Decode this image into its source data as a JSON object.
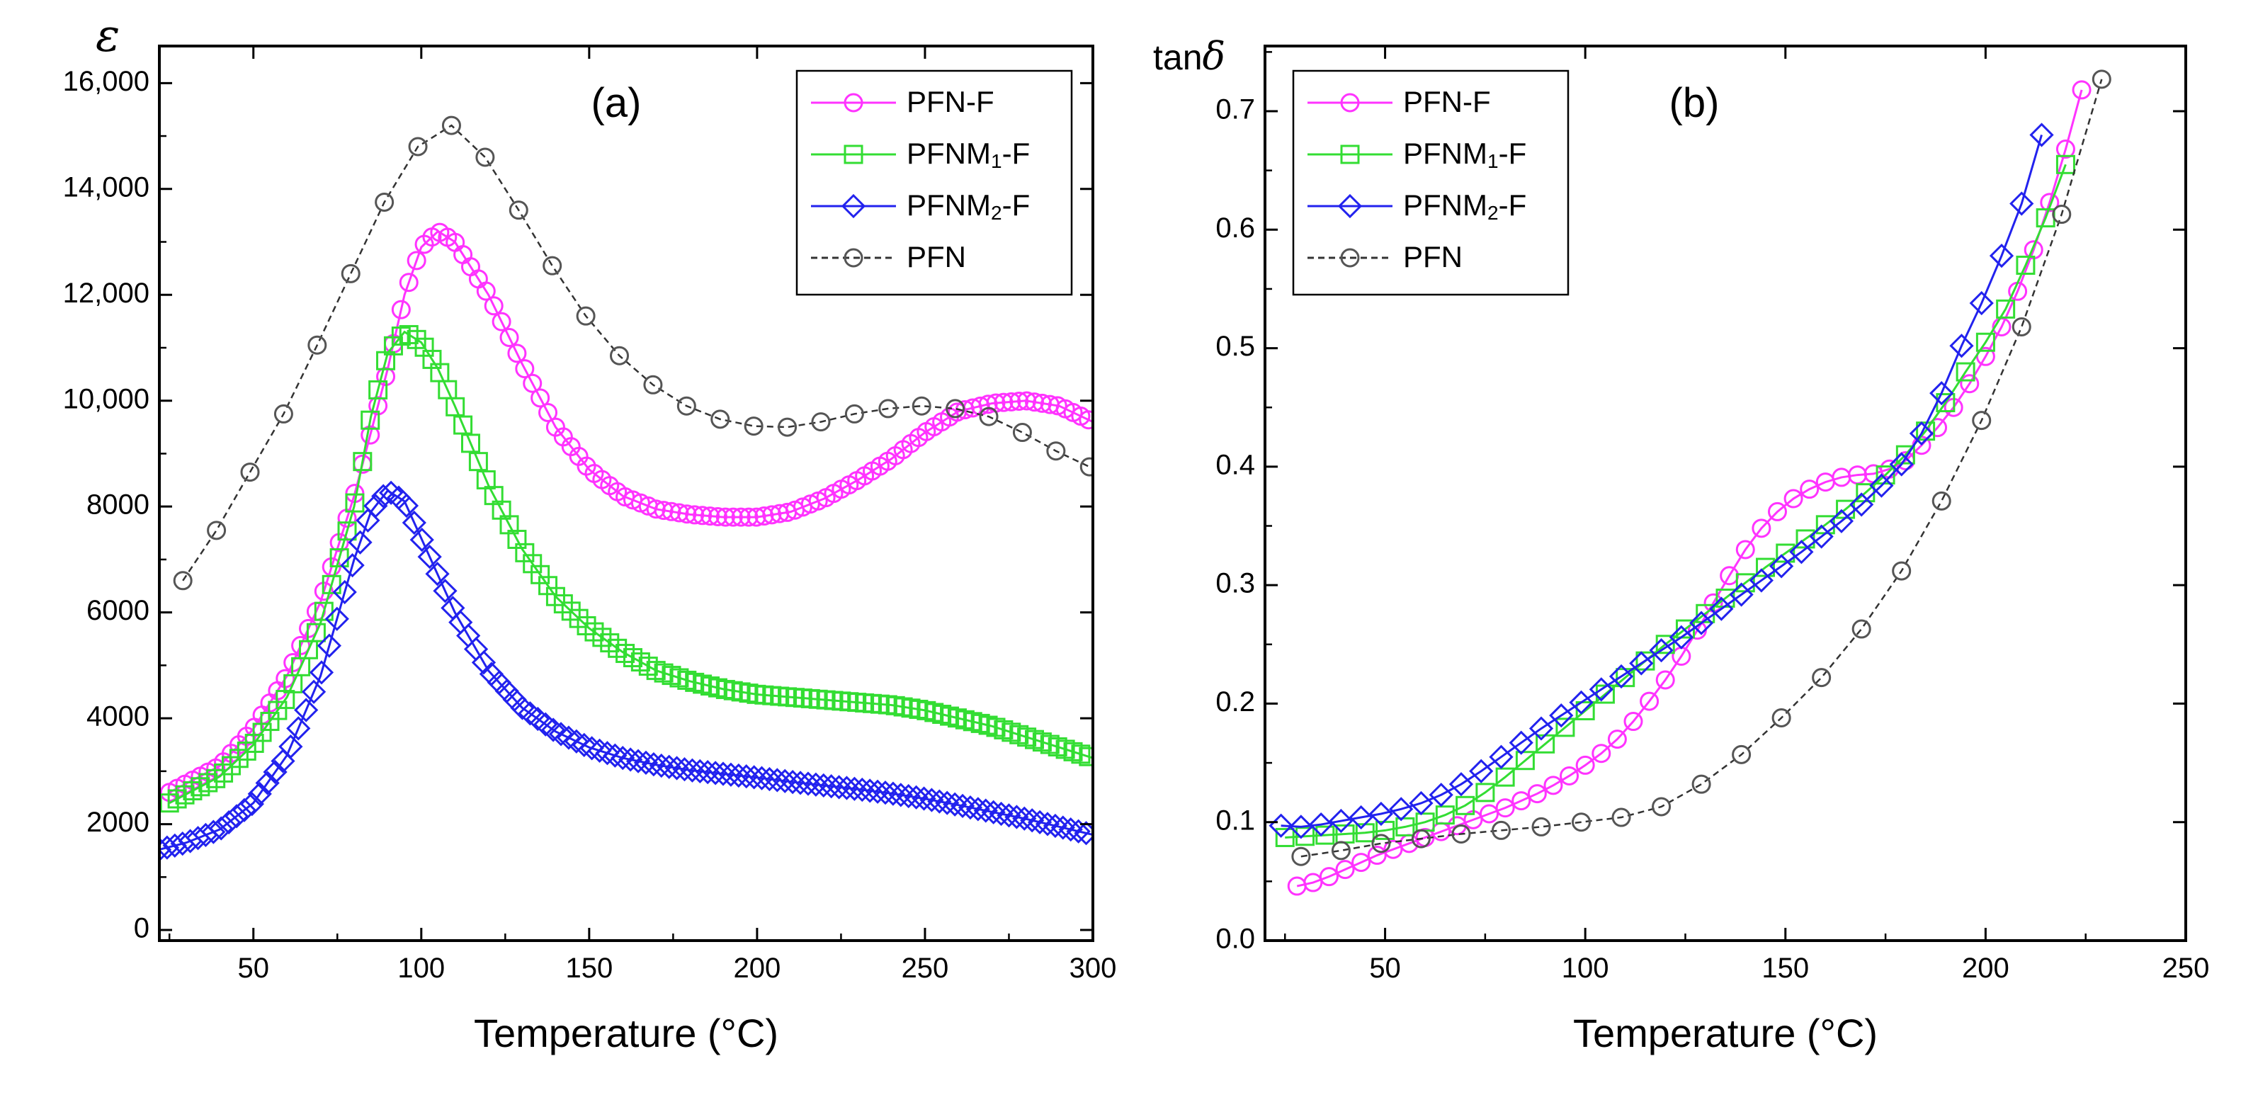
{
  "chart_data": [
    {
      "type": "scatter",
      "panel_label": "(a)",
      "ylabel": "ε",
      "xlabel": "Temperature (°C)",
      "xlim": [
        22,
        300
      ],
      "ylim": [
        -200,
        16700
      ],
      "xticks": [
        50,
        100,
        150,
        200,
        250,
        300
      ],
      "xtick_labels": [
        "50",
        "100",
        "150",
        "200",
        "250",
        "300"
      ],
      "yticks": [
        0,
        2000,
        4000,
        6000,
        8000,
        10000,
        12000,
        14000,
        16000
      ],
      "ytick_labels": [
        "0",
        "2000",
        "4000",
        "6000",
        "8000",
        "10,000",
        "12,000",
        "14,000",
        "16,000"
      ],
      "legend_position": "top-right",
      "legend": [
        "PFN-F",
        "PFNM1-F",
        "PFNM2-F",
        "PFN"
      ],
      "series": [
        {
          "name": "PFN-F",
          "marker": "circle",
          "color": "#ff33ff",
          "line": "solid",
          "dense": true,
          "x": [
            25,
            40,
            50,
            60,
            70,
            80,
            90,
            95,
            100,
            105,
            110,
            120,
            130,
            140,
            150,
            160,
            170,
            180,
            190,
            200,
            210,
            220,
            230,
            240,
            250,
            260,
            270,
            280,
            290,
            300
          ],
          "y": [
            2600,
            3100,
            3800,
            4800,
            6200,
            8200,
            10600,
            12000,
            12900,
            13200,
            13000,
            12000,
            10700,
            9500,
            8700,
            8200,
            7950,
            7850,
            7800,
            7800,
            7900,
            8150,
            8500,
            8900,
            9400,
            9800,
            9950,
            10000,
            9900,
            9600
          ]
        },
        {
          "name": "PFNM1-F",
          "marker": "square",
          "color": "#33dd33",
          "line": "solid",
          "dense": true,
          "x": [
            25,
            40,
            50,
            60,
            70,
            80,
            85,
            90,
            95,
            100,
            105,
            110,
            120,
            130,
            140,
            150,
            160,
            170,
            180,
            190,
            200,
            210,
            220,
            230,
            240,
            250,
            260,
            270,
            280,
            290,
            300
          ],
          "y": [
            2400,
            2900,
            3500,
            4400,
            5800,
            8000,
            9700,
            10900,
            11300,
            11100,
            10600,
            9900,
            8400,
            7200,
            6300,
            5700,
            5250,
            4900,
            4700,
            4550,
            4450,
            4400,
            4350,
            4300,
            4250,
            4150,
            4000,
            3850,
            3650,
            3450,
            3250
          ]
        },
        {
          "name": "PFNM2-F",
          "marker": "diamond",
          "color": "#2222ee",
          "line": "solid",
          "dense": true,
          "x": [
            22,
            30,
            40,
            50,
            60,
            70,
            80,
            85,
            90,
            95,
            100,
            110,
            120,
            130,
            140,
            150,
            160,
            170,
            180,
            190,
            200,
            210,
            220,
            230,
            240,
            250,
            260,
            270,
            280,
            290,
            300
          ],
          "y": [
            1520,
            1650,
            1900,
            2400,
            3300,
            4800,
            7000,
            7900,
            8300,
            8100,
            7400,
            6000,
            4900,
            4200,
            3750,
            3450,
            3250,
            3120,
            3020,
            2950,
            2880,
            2800,
            2730,
            2660,
            2580,
            2480,
            2360,
            2230,
            2100,
            1950,
            1800
          ]
        },
        {
          "name": "PFN",
          "marker": "circle",
          "color": "#555555",
          "line": "dashed",
          "dense": false,
          "x": [
            29,
            39,
            49,
            59,
            69,
            79,
            89,
            99,
            109,
            119,
            129,
            139,
            149,
            159,
            169,
            179,
            189,
            199,
            209,
            219,
            229,
            239,
            249,
            259,
            269,
            279,
            289,
            299
          ],
          "y": [
            6600,
            7550,
            8650,
            9750,
            11050,
            12400,
            13750,
            14800,
            15200,
            14600,
            13600,
            12550,
            11600,
            10850,
            10300,
            9900,
            9650,
            9520,
            9500,
            9600,
            9750,
            9850,
            9900,
            9850,
            9700,
            9400,
            9050,
            8750
          ]
        }
      ]
    },
    {
      "type": "scatter",
      "panel_label": "(b)",
      "ylabel": "tanδ",
      "xlabel": "Temperature (°C)",
      "xlim": [
        20,
        250
      ],
      "ylim": [
        0,
        0.755
      ],
      "xticks": [
        50,
        100,
        150,
        200,
        250
      ],
      "xtick_labels": [
        "50",
        "100",
        "150",
        "200",
        "250"
      ],
      "yticks": [
        0,
        0.1,
        0.2,
        0.3,
        0.4,
        0.5,
        0.6,
        0.7
      ],
      "ytick_labels": [
        "0.0",
        "0.1",
        "0.2",
        "0.3",
        "0.4",
        "0.5",
        "0.6",
        "0.7"
      ],
      "legend_position": "top-left",
      "legend": [
        "PFN-F",
        "PFNM1-F",
        "PFNM2-F",
        "PFN"
      ],
      "series": [
        {
          "name": "PFN-F",
          "marker": "circle",
          "color": "#ff33ff",
          "line": "solid",
          "dense": false,
          "x": [
            28,
            32,
            36,
            40,
            44,
            48,
            52,
            56,
            60,
            64,
            68,
            72,
            76,
            80,
            84,
            88,
            92,
            96,
            100,
            104,
            108,
            112,
            116,
            120,
            124,
            128,
            132,
            136,
            140,
            144,
            148,
            152,
            156,
            160,
            164,
            168,
            172,
            176,
            180,
            184,
            188,
            192,
            196,
            200,
            204,
            208,
            212,
            216,
            220,
            224
          ],
          "y": [
            0.046,
            0.049,
            0.054,
            0.06,
            0.066,
            0.072,
            0.077,
            0.082,
            0.087,
            0.092,
            0.097,
            0.102,
            0.107,
            0.112,
            0.118,
            0.124,
            0.131,
            0.139,
            0.148,
            0.158,
            0.17,
            0.185,
            0.202,
            0.22,
            0.24,
            0.262,
            0.285,
            0.308,
            0.33,
            0.348,
            0.362,
            0.373,
            0.381,
            0.387,
            0.391,
            0.393,
            0.394,
            0.398,
            0.405,
            0.418,
            0.433,
            0.45,
            0.47,
            0.493,
            0.518,
            0.548,
            0.583,
            0.623,
            0.668,
            0.718
          ]
        },
        {
          "name": "PFNM1-F",
          "marker": "square",
          "color": "#33dd33",
          "line": "solid",
          "dense": false,
          "x": [
            25,
            30,
            35,
            40,
            45,
            50,
            55,
            60,
            65,
            70,
            75,
            80,
            85,
            90,
            95,
            100,
            105,
            110,
            115,
            120,
            125,
            130,
            135,
            140,
            145,
            150,
            155,
            160,
            165,
            170,
            175,
            180,
            185,
            190,
            195,
            200,
            205,
            210,
            215,
            220
          ],
          "y": [
            0.087,
            0.088,
            0.089,
            0.09,
            0.091,
            0.093,
            0.096,
            0.1,
            0.106,
            0.114,
            0.125,
            0.138,
            0.152,
            0.166,
            0.18,
            0.194,
            0.208,
            0.222,
            0.236,
            0.25,
            0.263,
            0.276,
            0.289,
            0.302,
            0.315,
            0.327,
            0.339,
            0.351,
            0.364,
            0.378,
            0.393,
            0.41,
            0.43,
            0.454,
            0.48,
            0.505,
            0.533,
            0.57,
            0.61,
            0.655
          ]
        },
        {
          "name": "PFNM2-F",
          "marker": "diamond",
          "color": "#2222ee",
          "line": "solid",
          "dense": false,
          "x": [
            24,
            29,
            34,
            39,
            44,
            49,
            54,
            59,
            64,
            69,
            74,
            79,
            84,
            89,
            94,
            99,
            104,
            109,
            114,
            119,
            124,
            129,
            134,
            139,
            144,
            149,
            154,
            159,
            164,
            169,
            174,
            179,
            184,
            189,
            194,
            199,
            204,
            209,
            214
          ],
          "y": [
            0.097,
            0.096,
            0.098,
            0.101,
            0.104,
            0.107,
            0.111,
            0.116,
            0.123,
            0.132,
            0.143,
            0.155,
            0.167,
            0.179,
            0.19,
            0.201,
            0.212,
            0.223,
            0.234,
            0.245,
            0.256,
            0.268,
            0.28,
            0.292,
            0.304,
            0.316,
            0.328,
            0.341,
            0.354,
            0.368,
            0.384,
            0.402,
            0.428,
            0.462,
            0.502,
            0.538,
            0.578,
            0.622,
            0.68
          ]
        },
        {
          "name": "PFN",
          "marker": "circle",
          "color": "#555555",
          "line": "dashed",
          "dense": false,
          "x": [
            29,
            39,
            49,
            59,
            69,
            79,
            89,
            99,
            109,
            119,
            129,
            139,
            149,
            159,
            169,
            179,
            189,
            199,
            209,
            219,
            229
          ],
          "y": [
            0.071,
            0.076,
            0.082,
            0.086,
            0.09,
            0.093,
            0.096,
            0.1,
            0.104,
            0.113,
            0.132,
            0.157,
            0.188,
            0.222,
            0.263,
            0.312,
            0.371,
            0.439,
            0.518,
            0.613,
            0.727
          ]
        }
      ]
    }
  ]
}
